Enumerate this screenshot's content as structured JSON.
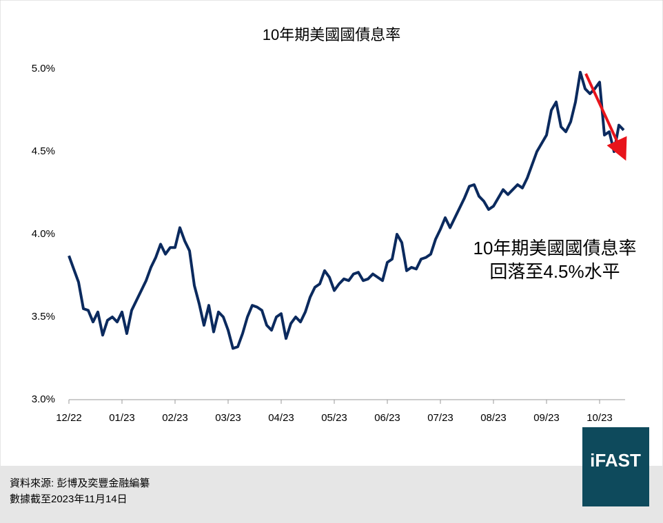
{
  "chart_data": {
    "type": "line",
    "title": "10年期美國國債息率",
    "categories": [
      "12/22",
      null,
      null,
      null,
      null,
      null,
      null,
      null,
      null,
      null,
      null,
      "01/23",
      null,
      null,
      null,
      null,
      null,
      null,
      null,
      null,
      null,
      null,
      "02/23",
      null,
      null,
      null,
      null,
      null,
      null,
      null,
      null,
      null,
      null,
      "03/23",
      null,
      null,
      null,
      null,
      null,
      null,
      null,
      null,
      null,
      null,
      "04/23",
      null,
      null,
      null,
      null,
      null,
      null,
      null,
      null,
      null,
      null,
      "05/23",
      null,
      null,
      null,
      null,
      null,
      null,
      null,
      null,
      null,
      null,
      "06/23",
      null,
      null,
      null,
      null,
      null,
      null,
      null,
      null,
      null,
      null,
      "07/23",
      null,
      null,
      null,
      null,
      null,
      null,
      null,
      null,
      null,
      null,
      "08/23",
      null,
      null,
      null,
      null,
      null,
      null,
      null,
      null,
      null,
      null,
      "09/23",
      null,
      null,
      null,
      null,
      null,
      null,
      null,
      null,
      null,
      null,
      "10/23",
      null,
      null,
      null,
      null,
      null
    ],
    "series": [
      {
        "color": "#0b2a5e",
        "values": [
          3.87,
          3.79,
          3.71,
          3.55,
          3.54,
          3.47,
          3.53,
          3.39,
          3.48,
          3.5,
          3.47,
          3.53,
          3.4,
          3.54,
          3.6,
          3.66,
          3.72,
          3.8,
          3.86,
          3.94,
          3.88,
          3.92,
          3.92,
          4.04,
          3.96,
          3.9,
          3.69,
          3.58,
          3.45,
          3.57,
          3.41,
          3.53,
          3.5,
          3.42,
          3.31,
          3.32,
          3.4,
          3.5,
          3.57,
          3.56,
          3.54,
          3.45,
          3.42,
          3.5,
          3.52,
          3.37,
          3.46,
          3.5,
          3.47,
          3.53,
          3.62,
          3.68,
          3.7,
          3.78,
          3.74,
          3.66,
          3.7,
          3.73,
          3.72,
          3.76,
          3.77,
          3.72,
          3.73,
          3.76,
          3.74,
          3.72,
          3.83,
          3.85,
          4.0,
          3.95,
          3.78,
          3.8,
          3.79,
          3.85,
          3.86,
          3.88,
          3.97,
          4.03,
          4.1,
          4.04,
          4.1,
          4.16,
          4.22,
          4.29,
          4.3,
          4.23,
          4.2,
          4.15,
          4.17,
          4.22,
          4.27,
          4.24,
          4.27,
          4.3,
          4.28,
          4.34,
          4.42,
          4.5,
          4.55,
          4.6,
          4.75,
          4.8,
          4.65,
          4.62,
          4.68,
          4.8,
          4.98,
          4.88,
          4.85,
          4.88,
          4.92,
          4.6,
          4.62,
          4.5,
          4.66,
          4.63
        ]
      }
    ],
    "ylim": [
      3.0,
      5.0
    ],
    "yticks": [
      {
        "value": 3.0,
        "label": "3.0%"
      },
      {
        "value": 3.5,
        "label": "3.5%"
      },
      {
        "value": 4.0,
        "label": "4.0%"
      },
      {
        "value": 4.5,
        "label": "4.5%"
      },
      {
        "value": 5.0,
        "label": "5.0%"
      }
    ],
    "annotation": [
      "10年期美國國債息率",
      "回落至4.5%水平"
    ],
    "source": [
      "資料來源: 彭博及奕豐金融編纂",
      "數據截至2023年11月14日"
    ],
    "logo": "iFAST"
  }
}
